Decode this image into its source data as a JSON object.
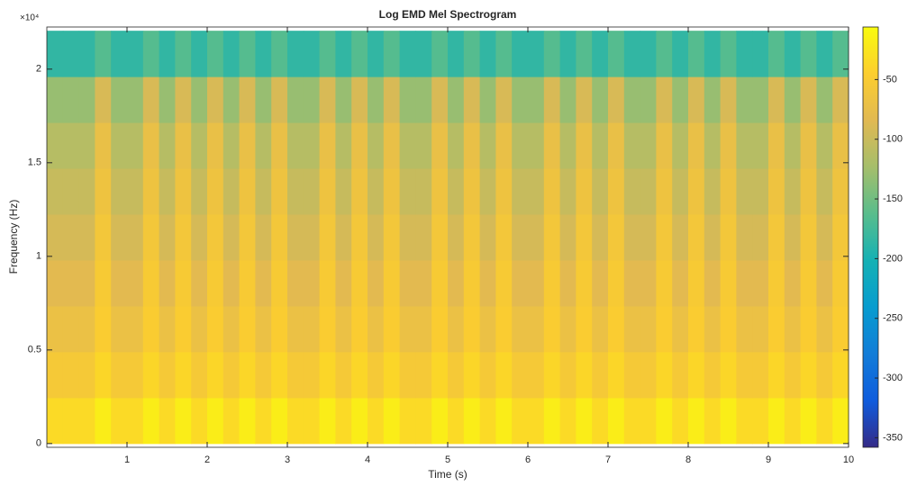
{
  "chart_data": {
    "type": "heatmap",
    "title": "Log EMD Mel Spectrogram",
    "x_label": "Time (s)",
    "y_label": "Frequency (Hz)",
    "y_exponent_label": "×10⁴",
    "colormap": "parula",
    "x": [
      0.1,
      0.3,
      0.5,
      0.7,
      0.9,
      1.1,
      1.3,
      1.5,
      1.7,
      1.9,
      2.1,
      2.3,
      2.5,
      2.7,
      2.9,
      3.1,
      3.3,
      3.5,
      3.7,
      3.9,
      4.1,
      4.3,
      4.5,
      4.7,
      4.9,
      5.1,
      5.3,
      5.5,
      5.7,
      5.9,
      6.1,
      6.3,
      6.5,
      6.7,
      6.9,
      7.1,
      7.3,
      7.5,
      7.7,
      7.9,
      8.1,
      8.3,
      8.5,
      8.7,
      8.9,
      9.1,
      9.3,
      9.5,
      9.7,
      9.9
    ],
    "y": [
      1225,
      3675,
      6125,
      8575,
      11025,
      13475,
      15925,
      18375,
      20825
    ],
    "z": [
      [
        -35,
        -35,
        -35,
        -18,
        -35,
        -35,
        -18,
        -35,
        -18,
        -35,
        -18,
        -35,
        -18,
        -35,
        -18,
        -35,
        -35,
        -18,
        -35,
        -18,
        -35,
        -18,
        -35,
        -35,
        -18,
        -35,
        -18,
        -35,
        -18,
        -35,
        -35,
        -18,
        -35,
        -18,
        -35,
        -18,
        -35,
        -35,
        -18,
        -35,
        -18,
        -35,
        -18,
        -35,
        -35,
        -18,
        -35,
        -18,
        -35,
        -18
      ],
      [
        -55,
        -55,
        -55,
        -38,
        -55,
        -55,
        -38,
        -55,
        -38,
        -55,
        -38,
        -55,
        -38,
        -55,
        -38,
        -55,
        -55,
        -38,
        -55,
        -38,
        -55,
        -38,
        -55,
        -55,
        -38,
        -55,
        -38,
        -55,
        -38,
        -55,
        -55,
        -38,
        -55,
        -38,
        -55,
        -38,
        -55,
        -55,
        -38,
        -55,
        -38,
        -55,
        -38,
        -55,
        -55,
        -38,
        -55,
        -38,
        -55,
        -38
      ],
      [
        -70,
        -70,
        -70,
        -48,
        -70,
        -70,
        -48,
        -70,
        -48,
        -70,
        -48,
        -70,
        -48,
        -70,
        -48,
        -70,
        -70,
        -48,
        -70,
        -48,
        -70,
        -48,
        -70,
        -70,
        -48,
        -70,
        -48,
        -70,
        -48,
        -70,
        -70,
        -48,
        -70,
        -48,
        -70,
        -48,
        -70,
        -70,
        -48,
        -70,
        -48,
        -70,
        -48,
        -70,
        -70,
        -48,
        -70,
        -48,
        -70,
        -48
      ],
      [
        -82,
        -82,
        -82,
        -52,
        -82,
        -82,
        -52,
        -82,
        -52,
        -82,
        -52,
        -82,
        -52,
        -82,
        -52,
        -82,
        -82,
        -52,
        -82,
        -52,
        -82,
        -52,
        -82,
        -82,
        -52,
        -82,
        -52,
        -82,
        -52,
        -82,
        -82,
        -52,
        -82,
        -52,
        -82,
        -52,
        -82,
        -82,
        -52,
        -82,
        -52,
        -82,
        -52,
        -82,
        -82,
        -52,
        -82,
        -52,
        -82,
        -52
      ],
      [
        -92,
        -92,
        -92,
        -58,
        -92,
        -92,
        -58,
        -92,
        -58,
        -92,
        -58,
        -92,
        -58,
        -92,
        -58,
        -92,
        -92,
        -58,
        -92,
        -58,
        -92,
        -58,
        -92,
        -92,
        -58,
        -92,
        -58,
        -92,
        -58,
        -92,
        -92,
        -58,
        -92,
        -58,
        -92,
        -58,
        -92,
        -92,
        -58,
        -92,
        -58,
        -92,
        -58,
        -92,
        -92,
        -58,
        -92,
        -58,
        -92,
        -58
      ],
      [
        -102,
        -102,
        -102,
        -65,
        -102,
        -102,
        -65,
        -102,
        -65,
        -102,
        -65,
        -102,
        -65,
        -102,
        -65,
        -102,
        -102,
        -65,
        -102,
        -65,
        -102,
        -65,
        -102,
        -102,
        -65,
        -102,
        -65,
        -102,
        -65,
        -102,
        -102,
        -65,
        -102,
        -65,
        -102,
        -65,
        -102,
        -102,
        -65,
        -102,
        -65,
        -102,
        -65,
        -102,
        -102,
        -65,
        -102,
        -65,
        -102,
        -65
      ],
      [
        -112,
        -112,
        -112,
        -72,
        -112,
        -112,
        -72,
        -112,
        -72,
        -112,
        -72,
        -112,
        -72,
        -112,
        -72,
        -112,
        -112,
        -72,
        -112,
        -72,
        -112,
        -72,
        -112,
        -112,
        -72,
        -112,
        -72,
        -112,
        -72,
        -112,
        -112,
        -72,
        -112,
        -72,
        -112,
        -72,
        -112,
        -112,
        -72,
        -112,
        -72,
        -112,
        -72,
        -112,
        -112,
        -72,
        -112,
        -72,
        -112,
        -72
      ],
      [
        -130,
        -130,
        -130,
        -90,
        -130,
        -130,
        -90,
        -130,
        -90,
        -130,
        -90,
        -130,
        -90,
        -130,
        -90,
        -130,
        -130,
        -90,
        -130,
        -90,
        -130,
        -90,
        -130,
        -130,
        -90,
        -130,
        -90,
        -130,
        -90,
        -130,
        -130,
        -90,
        -130,
        -90,
        -130,
        -90,
        -130,
        -130,
        -90,
        -130,
        -90,
        -130,
        -90,
        -130,
        -130,
        -90,
        -130,
        -90,
        -130,
        -90
      ],
      [
        -185,
        -185,
        -185,
        -165,
        -185,
        -185,
        -165,
        -185,
        -165,
        -185,
        -165,
        -185,
        -165,
        -185,
        -165,
        -185,
        -185,
        -165,
        -185,
        -165,
        -185,
        -165,
        -185,
        -185,
        -165,
        -185,
        -165,
        -185,
        -165,
        -185,
        -185,
        -165,
        -185,
        -165,
        -185,
        -165,
        -185,
        -185,
        -165,
        -185,
        -165,
        -185,
        -165,
        -185,
        -185,
        -165,
        -185,
        -165,
        -185,
        -165
      ]
    ],
    "xlim": [
      0,
      10
    ],
    "xticks": [
      1,
      2,
      3,
      4,
      5,
      6,
      7,
      8,
      9,
      10
    ],
    "ylim": [
      -200,
      22250
    ],
    "yticks": [
      0,
      {
        "value": 5000,
        "label": "0.5"
      },
      {
        "value": 10000,
        "label": "1"
      },
      {
        "value": 15000,
        "label": "1.5"
      },
      {
        "value": 20000,
        "label": "2"
      }
    ],
    "clim": [
      -358,
      -6
    ],
    "cticks": [
      -50,
      -100,
      -150,
      -200,
      -250,
      -300,
      -350
    ]
  }
}
